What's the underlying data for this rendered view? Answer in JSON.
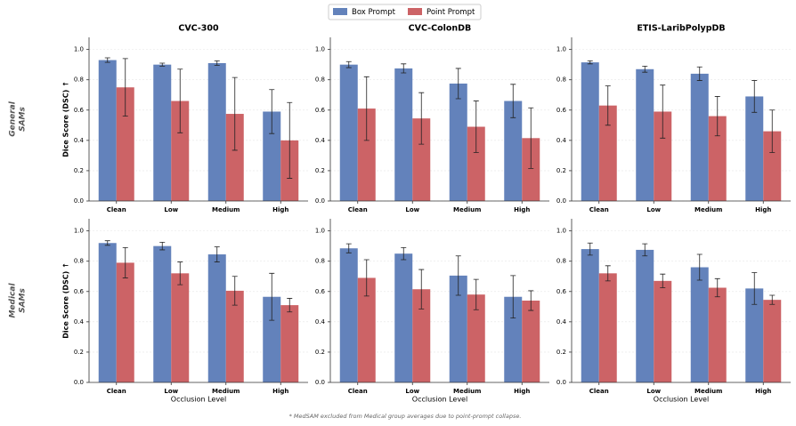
{
  "chart_data": [
    {
      "type": "bar",
      "title": "CVC-300",
      "ylabel": "Dice Score (DSC) ↑",
      "categories": [
        "Clean",
        "Low",
        "Medium",
        "High"
      ],
      "series": [
        {
          "name": "Box Prompt",
          "color": "#6382bb",
          "values": [
            0.93,
            0.9,
            0.91,
            0.59
          ],
          "errors": [
            0.015,
            0.01,
            0.015,
            0.145
          ]
        },
        {
          "name": "Point Prompt",
          "color": "#cc6366",
          "values": [
            0.75,
            0.66,
            0.575,
            0.4
          ],
          "errors": [
            0.19,
            0.21,
            0.24,
            0.25
          ]
        }
      ],
      "ylim": [
        0,
        1.08
      ],
      "yticks": [
        {
          "value": 0,
          "label": "0.0"
        },
        0.2,
        0.4,
        0.6,
        0.8,
        {
          "value": 1,
          "label": "1.0"
        }
      ],
      "grid": true
    },
    {
      "type": "bar",
      "title": "CVC-ColonDB",
      "categories": [
        "Clean",
        "Low",
        "Medium",
        "High"
      ],
      "series": [
        {
          "name": "Box Prompt",
          "color": "#6382bb",
          "values": [
            0.9,
            0.875,
            0.775,
            0.66
          ],
          "errors": [
            0.02,
            0.03,
            0.1,
            0.11
          ]
        },
        {
          "name": "Point Prompt",
          "color": "#cc6366",
          "values": [
            0.61,
            0.545,
            0.49,
            0.415
          ],
          "errors": [
            0.21,
            0.17,
            0.17,
            0.2
          ]
        }
      ],
      "ylim": [
        0,
        1.08
      ],
      "yticks": [
        {
          "value": 0,
          "label": "0.0"
        },
        0.2,
        0.4,
        0.6,
        0.8,
        {
          "value": 1,
          "label": "1.0"
        }
      ],
      "grid": true
    },
    {
      "type": "bar",
      "title": "ETIS-LaribPolypDB",
      "categories": [
        "Clean",
        "Low",
        "Medium",
        "High"
      ],
      "series": [
        {
          "name": "Box Prompt",
          "color": "#6382bb",
          "values": [
            0.915,
            0.87,
            0.84,
            0.69
          ],
          "errors": [
            0.01,
            0.02,
            0.045,
            0.105
          ]
        },
        {
          "name": "Point Prompt",
          "color": "#cc6366",
          "values": [
            0.63,
            0.59,
            0.56,
            0.46
          ],
          "errors": [
            0.13,
            0.175,
            0.13,
            0.14
          ]
        }
      ],
      "ylim": [
        0,
        1.08
      ],
      "yticks": [
        {
          "value": 0,
          "label": "0.0"
        },
        0.2,
        0.4,
        0.6,
        0.8,
        {
          "value": 1,
          "label": "1.0"
        }
      ],
      "grid": true
    },
    {
      "type": "bar",
      "ylabel": "Dice Score (DSC) ↑",
      "xlabel": "Occlusion Level",
      "categories": [
        "Clean",
        "Low",
        "Medium",
        "High"
      ],
      "series": [
        {
          "name": "Box Prompt",
          "color": "#6382bb",
          "values": [
            0.92,
            0.9,
            0.845,
            0.565
          ],
          "errors": [
            0.015,
            0.025,
            0.05,
            0.155
          ]
        },
        {
          "name": "Point Prompt",
          "color": "#cc6366",
          "values": [
            0.79,
            0.72,
            0.605,
            0.51
          ],
          "errors": [
            0.1,
            0.075,
            0.095,
            0.045
          ]
        }
      ],
      "ylim": [
        0,
        1.08
      ],
      "yticks": [
        {
          "value": 0,
          "label": "0.0"
        },
        0.2,
        0.4,
        0.6,
        0.8,
        {
          "value": 1,
          "label": "1.0"
        }
      ],
      "grid": true
    },
    {
      "type": "bar",
      "xlabel": "Occlusion Level",
      "categories": [
        "Clean",
        "Low",
        "Medium",
        "High"
      ],
      "series": [
        {
          "name": "Box Prompt",
          "color": "#6382bb",
          "values": [
            0.885,
            0.85,
            0.705,
            0.565
          ],
          "errors": [
            0.03,
            0.04,
            0.13,
            0.14
          ]
        },
        {
          "name": "Point Prompt",
          "color": "#cc6366",
          "values": [
            0.69,
            0.615,
            0.58,
            0.54
          ],
          "errors": [
            0.12,
            0.13,
            0.1,
            0.065
          ]
        }
      ],
      "ylim": [
        0,
        1.08
      ],
      "yticks": [
        {
          "value": 0,
          "label": "0.0"
        },
        0.2,
        0.4,
        0.6,
        0.8,
        {
          "value": 1,
          "label": "1.0"
        }
      ],
      "grid": true
    },
    {
      "type": "bar",
      "xlabel": "Occlusion Level",
      "categories": [
        "Clean",
        "Low",
        "Medium",
        "High"
      ],
      "series": [
        {
          "name": "Box Prompt",
          "color": "#6382bb",
          "values": [
            0.88,
            0.875,
            0.76,
            0.62
          ],
          "errors": [
            0.04,
            0.04,
            0.085,
            0.105
          ]
        },
        {
          "name": "Point Prompt",
          "color": "#cc6366",
          "values": [
            0.72,
            0.67,
            0.625,
            0.545
          ],
          "errors": [
            0.05,
            0.045,
            0.06,
            0.03
          ]
        }
      ],
      "ylim": [
        0,
        1.08
      ],
      "yticks": [
        {
          "value": 0,
          "label": "0.0"
        },
        0.2,
        0.4,
        0.6,
        0.8,
        {
          "value": 1,
          "label": "1.0"
        }
      ],
      "grid": true
    }
  ],
  "row_labels": [
    [
      "General",
      "SAMs"
    ],
    [
      "Medical",
      "SAMs"
    ]
  ],
  "footnote": "* MedSAM excluded from Medical group averages due to point-prompt collapse."
}
